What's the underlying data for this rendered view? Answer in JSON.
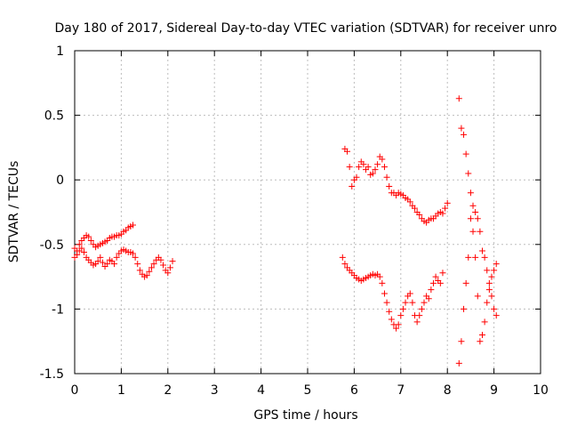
{
  "chart_data": {
    "type": "scatter",
    "title": "Day 180 of 2017, Sidereal Day-to-day VTEC variation (SDTVAR) for receiver unro",
    "xlabel": "GPS time / hours",
    "ylabel": "SDTVAR / TECUs",
    "xlim": [
      0,
      10
    ],
    "ylim": [
      -1.5,
      1
    ],
    "x_ticks": [
      "0",
      "1",
      "2",
      "3",
      "4",
      "5",
      "6",
      "7",
      "8",
      "9",
      "10"
    ],
    "y_ticks": [
      "1",
      "0.5",
      "0",
      "-0.5",
      "-1",
      "-1.5"
    ],
    "grid": true,
    "marker": "+",
    "color": "#ff0000",
    "series": [
      {
        "name": "segment-1-upper",
        "x": [
          0.0,
          0.05,
          0.1,
          0.15,
          0.2,
          0.25,
          0.3,
          0.35,
          0.4,
          0.45,
          0.5,
          0.55,
          0.6,
          0.65,
          0.7,
          0.75,
          0.8,
          0.85,
          0.9,
          0.95,
          1.0,
          1.05,
          1.1,
          1.15,
          1.2,
          1.25
        ],
        "y": [
          -0.53,
          -0.55,
          -0.5,
          -0.47,
          -0.45,
          -0.43,
          -0.44,
          -0.47,
          -0.5,
          -0.52,
          -0.51,
          -0.5,
          -0.49,
          -0.48,
          -0.47,
          -0.45,
          -0.44,
          -0.44,
          -0.43,
          -0.43,
          -0.42,
          -0.4,
          -0.39,
          -0.37,
          -0.36,
          -0.35
        ]
      },
      {
        "name": "segment-1-lower",
        "x": [
          0.0,
          0.05,
          0.1,
          0.15,
          0.2,
          0.25,
          0.3,
          0.35,
          0.4,
          0.45,
          0.5,
          0.55,
          0.6,
          0.65,
          0.7,
          0.75,
          0.8,
          0.85,
          0.9,
          0.95,
          1.0,
          1.05,
          1.1,
          1.15,
          1.2,
          1.25,
          1.3,
          1.35,
          1.4,
          1.45,
          1.5,
          1.55,
          1.6,
          1.65,
          1.7,
          1.75,
          1.8,
          1.85,
          1.9,
          1.95,
          2.0,
          2.05,
          2.1
        ],
        "y": [
          -0.6,
          -0.58,
          -0.55,
          -0.53,
          -0.56,
          -0.6,
          -0.62,
          -0.64,
          -0.66,
          -0.65,
          -0.63,
          -0.6,
          -0.64,
          -0.67,
          -0.65,
          -0.62,
          -0.63,
          -0.65,
          -0.6,
          -0.57,
          -0.55,
          -0.54,
          -0.55,
          -0.56,
          -0.56,
          -0.57,
          -0.6,
          -0.65,
          -0.7,
          -0.73,
          -0.75,
          -0.74,
          -0.71,
          -0.68,
          -0.65,
          -0.62,
          -0.6,
          -0.62,
          -0.66,
          -0.7,
          -0.72,
          -0.68,
          -0.63
        ]
      },
      {
        "name": "segment-2-upper",
        "x": [
          5.8,
          5.85,
          5.9,
          5.95,
          6.0,
          6.05,
          6.1,
          6.15,
          6.2,
          6.25,
          6.3,
          6.35,
          6.4,
          6.45,
          6.5,
          6.55,
          6.6,
          6.65,
          6.7,
          6.75,
          6.8,
          6.85,
          6.9,
          6.95,
          7.0,
          7.05,
          7.1,
          7.15,
          7.2,
          7.25,
          7.3,
          7.35,
          7.4,
          7.45,
          7.5,
          7.55,
          7.6,
          7.65,
          7.7,
          7.75,
          7.8,
          7.85,
          7.9,
          7.95,
          8.0
        ],
        "y": [
          0.24,
          0.22,
          0.1,
          -0.05,
          0.0,
          0.02,
          0.1,
          0.14,
          0.12,
          0.08,
          0.1,
          0.04,
          0.05,
          0.08,
          0.12,
          0.18,
          0.16,
          0.1,
          0.02,
          -0.05,
          -0.1,
          -0.1,
          -0.12,
          -0.1,
          -0.11,
          -0.12,
          -0.14,
          -0.15,
          -0.17,
          -0.2,
          -0.22,
          -0.25,
          -0.27,
          -0.3,
          -0.32,
          -0.33,
          -0.31,
          -0.3,
          -0.3,
          -0.28,
          -0.26,
          -0.25,
          -0.26,
          -0.22,
          -0.18
        ]
      },
      {
        "name": "segment-2-lower",
        "x": [
          5.75,
          5.8,
          5.85,
          5.9,
          5.95,
          6.0,
          6.05,
          6.1,
          6.15,
          6.2,
          6.25,
          6.3,
          6.35,
          6.4,
          6.45,
          6.5,
          6.55,
          6.6,
          6.65,
          6.7,
          6.75,
          6.8,
          6.85,
          6.9,
          6.95,
          7.0,
          7.05,
          7.1,
          7.15,
          7.2,
          7.25,
          7.3,
          7.35,
          7.4,
          7.45,
          7.5,
          7.55,
          7.6,
          7.65,
          7.7,
          7.75,
          7.8,
          7.85,
          7.9
        ],
        "y": [
          -0.6,
          -0.65,
          -0.68,
          -0.7,
          -0.72,
          -0.74,
          -0.76,
          -0.77,
          -0.78,
          -0.77,
          -0.76,
          -0.75,
          -0.74,
          -0.73,
          -0.74,
          -0.73,
          -0.75,
          -0.8,
          -0.88,
          -0.95,
          -1.02,
          -1.08,
          -1.12,
          -1.15,
          -1.12,
          -1.05,
          -1.0,
          -0.95,
          -0.9,
          -0.88,
          -0.95,
          -1.05,
          -1.1,
          -1.05,
          -1.0,
          -0.95,
          -0.9,
          -0.92,
          -0.85,
          -0.8,
          -0.75,
          -0.78,
          -0.8,
          -0.72
        ]
      },
      {
        "name": "segment-3-upper",
        "x": [
          8.25,
          8.3,
          8.35,
          8.4,
          8.45,
          8.5,
          8.55,
          8.6,
          8.65,
          8.7,
          8.75,
          8.8,
          8.85,
          8.9,
          8.95,
          9.0,
          9.05
        ],
        "y": [
          0.63,
          0.4,
          0.35,
          0.2,
          0.05,
          -0.1,
          -0.2,
          -0.25,
          -0.3,
          -0.4,
          -0.55,
          -0.6,
          -0.7,
          -0.8,
          -0.75,
          -0.7,
          -0.65
        ]
      },
      {
        "name": "segment-3-lower",
        "x": [
          8.25,
          8.3,
          8.35,
          8.4,
          8.45,
          8.5,
          8.55,
          8.6,
          8.65,
          8.7,
          8.75,
          8.8,
          8.85,
          8.9,
          8.95,
          9.0,
          9.05
        ],
        "y": [
          -1.42,
          -1.25,
          -1.0,
          -0.8,
          -0.6,
          -0.3,
          -0.4,
          -0.6,
          -0.9,
          -1.25,
          -1.2,
          -1.1,
          -0.95,
          -0.85,
          -0.9,
          -1.0,
          -1.05
        ]
      }
    ]
  }
}
